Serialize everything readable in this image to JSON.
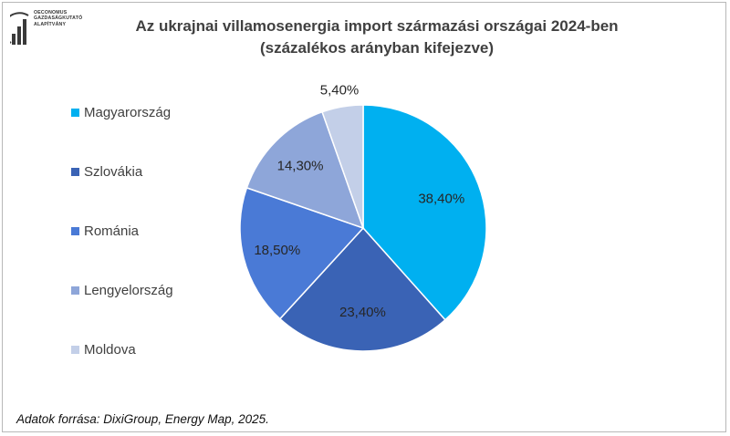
{
  "logo": {
    "lines": [
      "Oeconomus",
      "Gazdaságkutató",
      "Alapítvány"
    ],
    "icon": "bar-chart-logo-icon"
  },
  "title": {
    "line1": "Az ukrajnai villamosenergia import származási országai 2024-ben",
    "line2": "(százalékos arányban kifejezve)"
  },
  "source": "Adatok forrása: DixiGroup, Energy Map, 2025.",
  "chart_data": {
    "type": "pie",
    "title": "Az ukrajnai villamosenergia import származási országai 2024-ben (százalékos arányban kifejezve)",
    "legend_position": "left",
    "slices": [
      {
        "name": "Magyarország",
        "value": 38.4,
        "label": "38,40%",
        "color": "#00b0f0"
      },
      {
        "name": "Szlovákia",
        "value": 23.4,
        "label": "23,40%",
        "color": "#3a63b5"
      },
      {
        "name": "Románia",
        "value": 18.5,
        "label": "18,50%",
        "color": "#4a7ad6"
      },
      {
        "name": "Lengyelország",
        "value": 14.3,
        "label": "14,30%",
        "color": "#8ea6d9"
      },
      {
        "name": "Moldova",
        "value": 5.4,
        "label": "5,40%",
        "color": "#c3cfe8"
      }
    ]
  }
}
